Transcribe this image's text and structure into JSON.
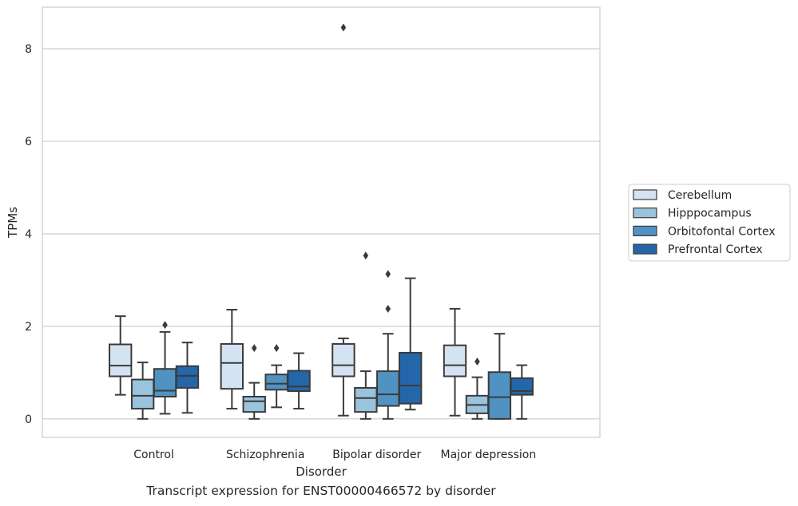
{
  "caption": "Transcript expression for ENST00000466572 by disorder",
  "chart_data": {
    "type": "boxplot",
    "xlabel": "Disorder",
    "ylabel": "TPMs",
    "ylim": [
      -0.4,
      8.9
    ],
    "yticks": [
      0,
      2,
      4,
      6,
      8
    ],
    "grid": "horizontal",
    "legend_position": "right",
    "categories": [
      "Control",
      "Schizophrenia",
      "Bipolar disorder",
      "Major depression"
    ],
    "series": [
      {
        "name": "Cerebellum",
        "color": "#d4e3f1",
        "boxes": [
          {
            "whislo": 0.52,
            "q1": 0.92,
            "med": 1.15,
            "q3": 1.61,
            "whishi": 2.22,
            "fliers": []
          },
          {
            "whislo": 0.22,
            "q1": 0.65,
            "med": 1.21,
            "q3": 1.62,
            "whishi": 2.36,
            "fliers": []
          },
          {
            "whislo": 0.07,
            "q1": 0.92,
            "med": 1.16,
            "q3": 1.62,
            "whishi": 1.74,
            "fliers": [
              8.46
            ]
          },
          {
            "whislo": 0.07,
            "q1": 0.92,
            "med": 1.16,
            "q3": 1.59,
            "whishi": 2.38,
            "fliers": []
          }
        ]
      },
      {
        "name": "Hipppocampus",
        "color": "#9ac3de",
        "boxes": [
          {
            "whislo": 0.0,
            "q1": 0.22,
            "med": 0.5,
            "q3": 0.85,
            "whishi": 1.22,
            "fliers": []
          },
          {
            "whislo": 0.0,
            "q1": 0.15,
            "med": 0.38,
            "q3": 0.48,
            "whishi": 0.78,
            "fliers": [
              1.53
            ]
          },
          {
            "whislo": 0.0,
            "q1": 0.15,
            "med": 0.45,
            "q3": 0.67,
            "whishi": 1.03,
            "fliers": [
              3.53
            ]
          },
          {
            "whislo": 0.0,
            "q1": 0.12,
            "med": 0.3,
            "q3": 0.5,
            "whishi": 0.9,
            "fliers": [
              1.24
            ]
          }
        ]
      },
      {
        "name": "Orbitofontal Cortex",
        "color": "#5093c3",
        "boxes": [
          {
            "whislo": 0.11,
            "q1": 0.48,
            "med": 0.61,
            "q3": 1.08,
            "whishi": 1.88,
            "fliers": [
              2.03
            ]
          },
          {
            "whislo": 0.25,
            "q1": 0.63,
            "med": 0.76,
            "q3": 0.96,
            "whishi": 1.16,
            "fliers": [
              1.53
            ]
          },
          {
            "whislo": 0.0,
            "q1": 0.28,
            "med": 0.53,
            "q3": 1.03,
            "whishi": 1.84,
            "fliers": [
              2.38,
              3.13
            ]
          },
          {
            "whislo": 0.0,
            "q1": 0.0,
            "med": 0.47,
            "q3": 1.01,
            "whishi": 1.84,
            "fliers": []
          }
        ]
      },
      {
        "name": "Prefrontal Cortex",
        "color": "#2366aa",
        "boxes": [
          {
            "whislo": 0.13,
            "q1": 0.67,
            "med": 0.93,
            "q3": 1.14,
            "whishi": 1.65,
            "fliers": []
          },
          {
            "whislo": 0.22,
            "q1": 0.6,
            "med": 0.7,
            "q3": 1.04,
            "whishi": 1.42,
            "fliers": []
          },
          {
            "whislo": 0.2,
            "q1": 0.33,
            "med": 0.72,
            "q3": 1.43,
            "whishi": 3.04,
            "fliers": []
          },
          {
            "whislo": 0.0,
            "q1": 0.52,
            "med": 0.6,
            "q3": 0.88,
            "whishi": 1.16,
            "fliers": []
          }
        ]
      }
    ]
  }
}
